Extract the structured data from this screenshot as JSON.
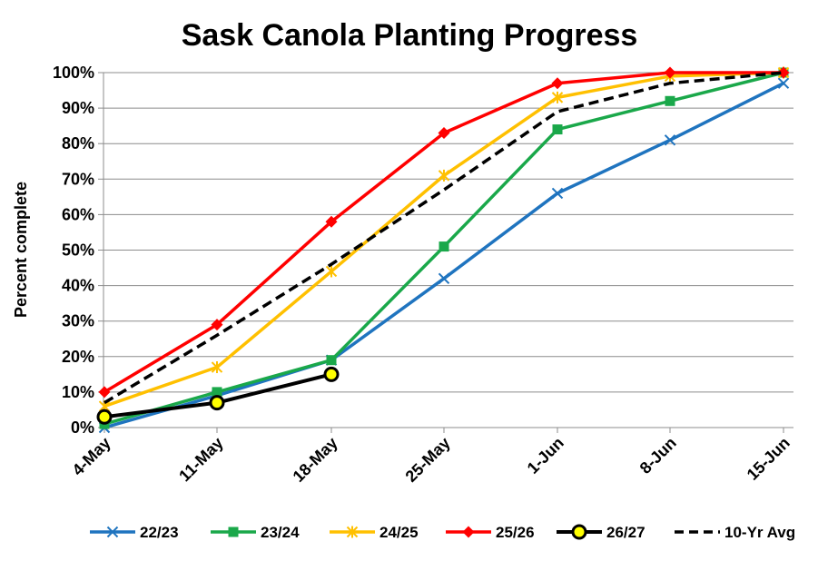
{
  "chart_data": {
    "type": "line",
    "title": "Sask Canola Planting Progress",
    "ylabel": "Percent complete",
    "xlabel": "",
    "categories": [
      "4-May",
      "11-May",
      "18-May",
      "25-May",
      "1-Jun",
      "8-Jun",
      "15-Jun"
    ],
    "yticks": [
      "0%",
      "10%",
      "20%",
      "30%",
      "40%",
      "50%",
      "60%",
      "70%",
      "80%",
      "90%",
      "100%"
    ],
    "ylim": [
      0,
      100
    ],
    "grid": true,
    "legend_position": "bottom",
    "series": [
      {
        "name": "22/23",
        "color": "#1f74bf",
        "marker": "x",
        "dash": false,
        "values": [
          0,
          9,
          19,
          42,
          66,
          81,
          97
        ]
      },
      {
        "name": "23/24",
        "color": "#1aa84a",
        "marker": "square",
        "dash": false,
        "values": [
          1,
          10,
          19,
          51,
          84,
          92,
          100
        ]
      },
      {
        "name": "24/25",
        "color": "#ffc000",
        "marker": "star",
        "dash": false,
        "values": [
          6,
          17,
          44,
          71,
          93,
          99,
          100
        ]
      },
      {
        "name": "25/26",
        "color": "#ff0000",
        "marker": "diamond",
        "dash": false,
        "values": [
          10,
          29,
          58,
          83,
          97,
          100,
          100
        ]
      },
      {
        "name": "26/27",
        "color": "#000000",
        "marker": "circle",
        "marker_fill": "#ffff00",
        "dash": false,
        "values": [
          3,
          7,
          15,
          null,
          null,
          null,
          null
        ]
      },
      {
        "name": "10-Yr Avg",
        "color": "#000000",
        "marker": "none",
        "dash": true,
        "values": [
          7,
          26,
          46,
          67,
          89,
          97,
          100
        ]
      }
    ]
  }
}
